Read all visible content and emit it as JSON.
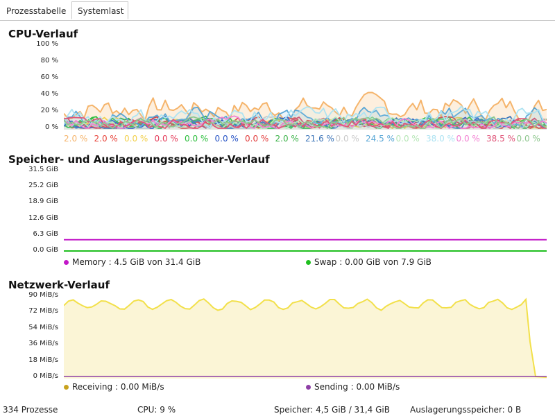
{
  "tabs": [
    {
      "label": "Prozesstabelle",
      "active": false
    },
    {
      "label": "Systemlast",
      "active": true
    }
  ],
  "cpu": {
    "title": "CPU-Verlauf",
    "y_ticks": [
      "100 %",
      "80 %",
      "60 %",
      "40 %",
      "20 %",
      "0 %"
    ],
    "cores": [
      {
        "value": "2.0 %",
        "color": "#f5b46b"
      },
      {
        "value": "2.0 %",
        "color": "#e8453c"
      },
      {
        "value": "0.0 %",
        "color": "#f2d04b"
      },
      {
        "value": "0.0 %",
        "color": "#e43c5a"
      },
      {
        "value": "0.0 %",
        "color": "#2fbf3f"
      },
      {
        "value": "0.0 %",
        "color": "#2a56c6"
      },
      {
        "value": "0.0 %",
        "color": "#e23b3b"
      },
      {
        "value": "2.0 %",
        "color": "#3db34a"
      },
      {
        "value": "21.6 %",
        "color": "#3b74b8"
      },
      {
        "value": "0.0 %",
        "color": "#c9c9c9"
      },
      {
        "value": "24.5 %",
        "color": "#5aa7d6"
      },
      {
        "value": "0.0 %",
        "color": "#b6e6b6"
      },
      {
        "value": "38.0 %",
        "color": "#aee3f2"
      },
      {
        "value": "0.0 %",
        "color": "#f27fd2"
      },
      {
        "value": "38.5 %",
        "color": "#e0567a"
      },
      {
        "value": "0.0 %",
        "color": "#8fc78f"
      }
    ]
  },
  "memory": {
    "title": "Speicher- und Auslagerungsspeicher-Verlauf",
    "y_ticks": [
      "31.5 GiB",
      "25.2 GiB",
      "18.9 GiB",
      "12.6 GiB",
      "6.3 GiB",
      "0.0 GiB"
    ],
    "memory_label": "Memory : 4.5 GiB von 31.4 GiB",
    "swap_label": "Swap : 0.00 GiB von 7.9 GiB",
    "memory_color": "#c218c8",
    "swap_color": "#1fbf1f",
    "memory_used_gib": 4.5,
    "memory_total_gib": 31.4,
    "swap_used_gib": 0.0,
    "swap_total_gib": 7.9,
    "axis_max_gib": 31.5
  },
  "network": {
    "title": "Netzwerk-Verlauf",
    "y_ticks": [
      "90 MiB/s",
      "72 MiB/s",
      "54 MiB/s",
      "36 MiB/s",
      "18 MiB/s",
      "0 MiB/s"
    ],
    "receiving_label": "Receiving : 0.00 MiB/s",
    "sending_label": "Sending : 0.00 MiB/s",
    "receiving_color": "#c8a21e",
    "sending_color": "#8e3fa6",
    "axis_max_mib": 90,
    "receiving_recent_mib": 82,
    "receiving_current_mib": 0.0,
    "sending_current_mib": 0.0
  },
  "status": {
    "processes": "334 Prozesse",
    "cpu": "CPU: 9 %",
    "memory": "Speicher: 4,5 GiB / 31,4 GiB",
    "swap": "Auslagerungsspeicher: 0 B"
  }
}
